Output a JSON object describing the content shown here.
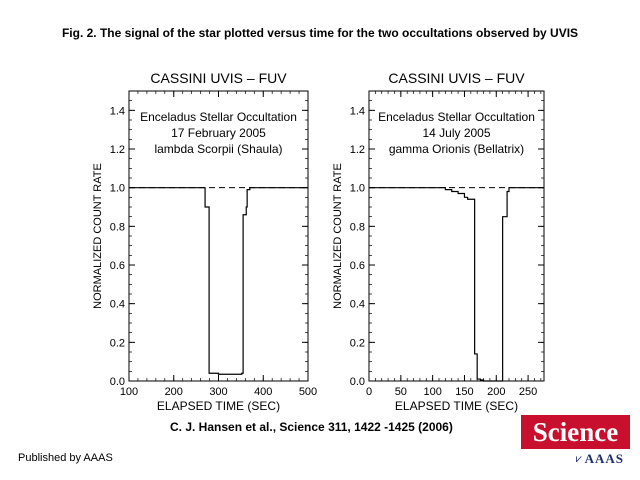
{
  "figure": {
    "title": "Fig. 2. The signal of the star plotted versus time for the two occultations observed by UVIS",
    "citation": "C. J.  Hansen et al.,  Science  311, 1422 -1425 (2006)",
    "publisher": "Published by AAAS",
    "logo": {
      "word": "Science",
      "sub": "AAAS",
      "mark": "⩗"
    }
  },
  "chart_data": [
    {
      "type": "line",
      "title": "CASSINI UVIS – FUV",
      "annotation": [
        "Enceladus Stellar Occultation",
        "17 February 2005",
        "lambda Scorpii (Shaula)"
      ],
      "xlabel": "ELAPSED TIME (SEC)",
      "ylabel": "NORMALIZED COUNT RATE",
      "xlim": [
        100,
        500
      ],
      "ylim": [
        0,
        1.5
      ],
      "xticks": [
        100,
        200,
        300,
        400,
        500
      ],
      "yticks": [
        0.0,
        0.2,
        0.4,
        0.6,
        0.8,
        1.0,
        1.2,
        1.4
      ],
      "reference_line": 1.0,
      "series": [
        {
          "x": [
            100,
            150,
            200,
            250,
            268,
            270,
            273,
            276,
            279,
            282,
            290,
            300,
            320,
            340,
            352,
            355,
            360,
            362,
            364,
            370,
            400,
            450,
            500
          ],
          "y": [
            1.0,
            1.0,
            1.0,
            1.0,
            1.0,
            0.9,
            0.9,
            0.9,
            0.04,
            0.04,
            0.04,
            0.035,
            0.035,
            0.035,
            0.04,
            0.86,
            0.86,
            0.9,
            0.99,
            1.0,
            1.0,
            1.0,
            1.0
          ]
        }
      ]
    },
    {
      "type": "line",
      "title": "CASSINI UVIS – FUV",
      "annotation": [
        "Enceladus Stellar Occultation",
        "14 July 2005",
        "gamma Orionis (Bellatrix)"
      ],
      "xlabel": "ELAPSED TIME (SEC)",
      "ylabel": "NORMALIZED COUNT RATE",
      "xlim": [
        0,
        275
      ],
      "ylim": [
        0,
        1.5
      ],
      "xticks": [
        0,
        50,
        100,
        150,
        200,
        250
      ],
      "yticks": [
        0.0,
        0.2,
        0.4,
        0.6,
        0.8,
        1.0,
        1.2,
        1.4
      ],
      "reference_line": 1.0,
      "series": [
        {
          "x": [
            0,
            50,
            100,
            120,
            130,
            140,
            150,
            155,
            160,
            166,
            168,
            170,
            175,
            180,
            190,
            200,
            208,
            210,
            215,
            217,
            220,
            250,
            275
          ],
          "y": [
            1.0,
            1.0,
            1.0,
            0.99,
            0.98,
            0.97,
            0.95,
            0.94,
            0.94,
            0.14,
            0.14,
            0.01,
            0.005,
            0.0,
            0.0,
            0.0,
            0.0,
            0.85,
            0.85,
            0.98,
            1.0,
            1.0,
            1.0
          ]
        }
      ]
    }
  ]
}
